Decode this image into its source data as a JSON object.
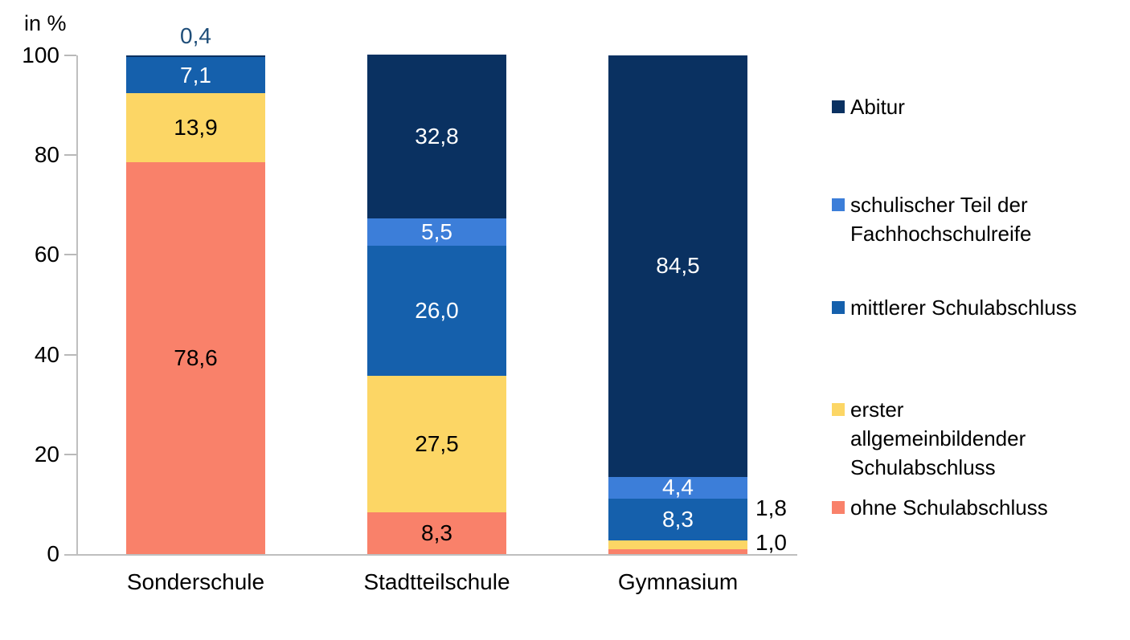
{
  "chart_data": {
    "type": "stacked-bar",
    "title": "",
    "ylabel": "in %",
    "ylim": [
      0,
      100
    ],
    "yticks": [
      0,
      20,
      40,
      60,
      80,
      100
    ],
    "grid": false,
    "legend_position": "right",
    "decimal_separator": ",",
    "categories": [
      "Sonderschule",
      "Stadtteilschule",
      "Gymnasium"
    ],
    "series": [
      {
        "name": "ohne Schulabschluss",
        "color": "#f9816a",
        "text_color": "#000000",
        "values": [
          78.6,
          8.3,
          1.0
        ]
      },
      {
        "name": "erster allgemeinbildender Schulabschluss",
        "color": "#fcd665",
        "text_color": "#000000",
        "values": [
          13.9,
          27.5,
          1.8
        ]
      },
      {
        "name": "mittlerer Schulabschluss",
        "color": "#1560ac",
        "text_color": "#ffffff",
        "values": [
          7.1,
          26.0,
          8.3
        ]
      },
      {
        "name": "schulischer Teil der Fachhochschulreife",
        "color": "#3c7ed9",
        "text_color": "#ffffff",
        "values": [
          0,
          5.5,
          4.4
        ]
      },
      {
        "name": "Abitur",
        "color": "#0a3161",
        "text_color": "#ffffff",
        "values": [
          0.4,
          32.8,
          84.5
        ]
      }
    ],
    "label_placement": [
      [
        "inside",
        "inside",
        "inside",
        "none",
        "above"
      ],
      [
        "inside",
        "inside",
        "inside",
        "inside",
        "inside"
      ],
      [
        "outside",
        "outside",
        "inside",
        "inside",
        "inside"
      ]
    ],
    "above_label_color": "#1f4e79"
  },
  "legend": {
    "entries": [
      {
        "lines": [
          "Abitur"
        ],
        "color": "#0a3161"
      },
      {
        "lines": [
          "schulischer Teil der",
          "Fachhochschulreife"
        ],
        "color": "#3c7ed9"
      },
      {
        "lines": [
          "mittlerer Schulabschluss"
        ],
        "color": "#1560ac"
      },
      {
        "lines": [
          "erster",
          "allgemeinbildender",
          "Schulabschluss"
        ],
        "color": "#fcd665"
      },
      {
        "lines": [
          "ohne Schulabschluss"
        ],
        "color": "#f9816a"
      }
    ]
  },
  "colors": {
    "axis": "#bfbfbf",
    "text": "#000000"
  }
}
